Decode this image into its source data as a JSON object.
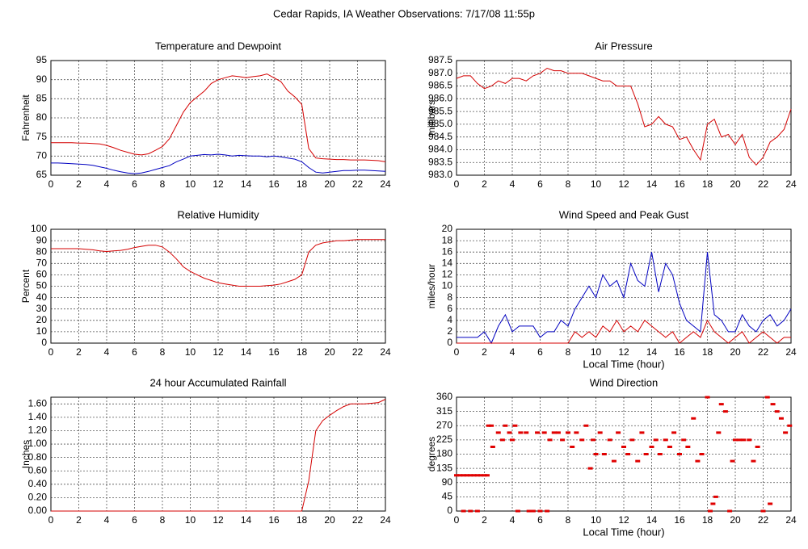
{
  "title": "Cedar Rapids, IA Weather Observations: 7/17/08 11:55p",
  "chart_data": [
    {
      "type": "line",
      "title": "Temperature and Dewpoint",
      "ylabel": "Fahrenheit",
      "xlim": [
        0,
        24
      ],
      "xticks": [
        0,
        2,
        4,
        6,
        8,
        10,
        12,
        14,
        16,
        18,
        20,
        22,
        24
      ],
      "ylim": [
        65,
        95
      ],
      "yticks": [
        65,
        70,
        75,
        80,
        85,
        90,
        95
      ],
      "grid": true,
      "x": [
        0,
        0.5,
        1,
        1.5,
        2,
        2.5,
        3,
        3.5,
        4,
        4.5,
        5,
        5.5,
        6,
        6.5,
        7,
        7.5,
        8,
        8.5,
        9,
        9.5,
        10,
        10.5,
        11,
        11.5,
        12,
        12.5,
        13,
        13.5,
        14,
        14.5,
        15,
        15.5,
        16,
        16.5,
        17,
        17.5,
        18,
        18.5,
        19,
        19.5,
        20,
        20.5,
        21,
        21.5,
        22,
        22.5,
        23,
        23.5,
        24
      ],
      "series": [
        {
          "color": "#d40000",
          "values": [
            73.5,
            73.5,
            73.5,
            73.5,
            73.4,
            73.4,
            73.3,
            73.2,
            72.8,
            72.2,
            71.5,
            71,
            70.5,
            70.3,
            70.6,
            71.5,
            72.5,
            74.5,
            78,
            81.5,
            84,
            85.5,
            87,
            89,
            90,
            90.5,
            91,
            90.8,
            90.5,
            90.8,
            91,
            91.5,
            90.5,
            89.5,
            87,
            85.5,
            83.5,
            72,
            69.5,
            69.3,
            69.2,
            69.1,
            69.1,
            69,
            69,
            69,
            68.9,
            68.8,
            68.5
          ]
        },
        {
          "color": "#0000c0",
          "values": [
            68.2,
            68.2,
            68.1,
            68,
            67.9,
            67.8,
            67.6,
            67.2,
            66.8,
            66.3,
            65.9,
            65.6,
            65.4,
            65.6,
            66,
            66.5,
            67,
            67.5,
            68.5,
            69.2,
            70,
            70.2,
            70.4,
            70.3,
            70.5,
            70.3,
            70,
            70.2,
            70.1,
            70,
            70,
            69.8,
            70,
            69.8,
            69.5,
            69.2,
            68.5,
            67,
            65.8,
            65.6,
            65.8,
            66,
            66.2,
            66.2,
            66.3,
            66.3,
            66.2,
            66.1,
            66
          ]
        }
      ]
    },
    {
      "type": "line",
      "title": "Air Pressure",
      "ylabel": "millibars",
      "xlim": [
        0,
        24
      ],
      "xticks": [
        0,
        2,
        4,
        6,
        8,
        10,
        12,
        14,
        16,
        18,
        20,
        22,
        24
      ],
      "ylim": [
        983,
        987.5
      ],
      "yticks": [
        {
          "value": 983,
          "label": "983.0"
        },
        983.5,
        {
          "value": 984,
          "label": "984.0"
        },
        984.5,
        {
          "value": 985,
          "label": "985.0"
        },
        985.5,
        {
          "value": 986,
          "label": "986.0"
        },
        986.5,
        {
          "value": 987,
          "label": "987.0"
        },
        987.5
      ],
      "grid": true,
      "x": [
        0,
        0.5,
        1,
        1.5,
        2,
        2.5,
        3,
        3.5,
        4,
        4.5,
        5,
        5.5,
        6,
        6.5,
        7,
        7.5,
        8,
        8.5,
        9,
        9.5,
        10,
        10.5,
        11,
        11.5,
        12,
        12.5,
        13,
        13.5,
        14,
        14.5,
        15,
        15.5,
        16,
        16.5,
        17,
        17.5,
        18,
        18.5,
        19,
        19.5,
        20,
        20.5,
        21,
        21.5,
        22,
        22.5,
        23,
        23.5,
        24
      ],
      "series": [
        {
          "color": "#d40000",
          "values": [
            986.8,
            986.9,
            986.9,
            986.6,
            986.4,
            986.5,
            986.7,
            986.6,
            986.8,
            986.8,
            986.7,
            986.9,
            987,
            987.2,
            987.1,
            987.1,
            987,
            987,
            987,
            986.9,
            986.8,
            986.7,
            986.7,
            986.5,
            986.5,
            986.5,
            985.8,
            984.9,
            985,
            985.3,
            985,
            984.9,
            984.4,
            984.5,
            984,
            983.6,
            985,
            985.2,
            984.5,
            984.6,
            984.2,
            984.6,
            983.7,
            983.4,
            983.7,
            984.3,
            984.5,
            984.8,
            985.6
          ]
        }
      ]
    },
    {
      "type": "line",
      "title": "Relative Humidity",
      "ylabel": "Percent",
      "xlim": [
        0,
        24
      ],
      "xticks": [
        0,
        2,
        4,
        6,
        8,
        10,
        12,
        14,
        16,
        18,
        20,
        22,
        24
      ],
      "ylim": [
        0,
        100
      ],
      "yticks": [
        0,
        10,
        20,
        30,
        40,
        50,
        60,
        70,
        80,
        90,
        100
      ],
      "grid": true,
      "x": [
        0,
        0.5,
        1,
        1.5,
        2,
        2.5,
        3,
        3.5,
        4,
        4.5,
        5,
        5.5,
        6,
        6.5,
        7,
        7.5,
        8,
        8.5,
        9,
        9.5,
        10,
        10.5,
        11,
        11.5,
        12,
        12.5,
        13,
        13.5,
        14,
        14.5,
        15,
        15.5,
        16,
        16.5,
        17,
        17.5,
        18,
        18.5,
        19,
        19.5,
        20,
        20.5,
        21,
        21.5,
        22,
        22.5,
        23,
        23.5,
        24
      ],
      "series": [
        {
          "color": "#d40000",
          "values": [
            83,
            83,
            83,
            83,
            83,
            82.5,
            82,
            81,
            80.5,
            81,
            81.5,
            82.5,
            84,
            85,
            86,
            86,
            84.5,
            80,
            74,
            67,
            63,
            60,
            57,
            55,
            53,
            52,
            51,
            50,
            50,
            50,
            50,
            50.5,
            51,
            52,
            54,
            56,
            60,
            80,
            86,
            88,
            89,
            90,
            90,
            90.5,
            91,
            91,
            91,
            91,
            91
          ]
        }
      ]
    },
    {
      "type": "line",
      "title": "Wind Speed and Peak Gust",
      "ylabel": "miles/hour",
      "xlabel": "Local Time (hour)",
      "xlim": [
        0,
        24
      ],
      "xticks": [
        0,
        2,
        4,
        6,
        8,
        10,
        12,
        14,
        16,
        18,
        20,
        22,
        24
      ],
      "ylim": [
        0,
        20
      ],
      "yticks": [
        0,
        2,
        4,
        6,
        8,
        10,
        12,
        14,
        16,
        18,
        20
      ],
      "grid": true,
      "x": [
        0,
        0.5,
        1,
        1.5,
        2,
        2.5,
        3,
        3.5,
        4,
        4.5,
        5,
        5.5,
        6,
        6.5,
        7,
        7.5,
        8,
        8.5,
        9,
        9.5,
        10,
        10.5,
        11,
        11.5,
        12,
        12.5,
        13,
        13.5,
        14,
        14.5,
        15,
        15.5,
        16,
        16.5,
        17,
        17.5,
        18,
        18.5,
        19,
        19.5,
        20,
        20.5,
        21,
        21.5,
        22,
        22.5,
        23,
        23.5,
        24
      ],
      "series": [
        {
          "color": "#0000c0",
          "values": [
            1,
            1,
            1,
            1,
            2,
            0,
            3,
            5,
            2,
            3,
            3,
            3,
            1,
            2,
            2,
            4,
            3,
            6,
            8,
            10,
            8,
            12,
            10,
            11,
            8,
            14,
            11,
            10,
            16,
            9,
            14,
            12,
            7,
            4,
            3,
            2,
            16,
            5,
            4,
            2,
            2,
            5,
            3,
            2,
            4,
            5,
            3,
            4,
            6
          ]
        },
        {
          "color": "#d40000",
          "values": [
            0,
            0,
            0,
            0,
            0,
            0,
            0,
            0,
            0,
            0,
            0,
            0,
            0,
            0,
            0,
            0,
            0,
            2,
            1,
            2,
            1,
            3,
            2,
            4,
            2,
            3,
            2,
            4,
            3,
            2,
            1,
            2,
            0,
            1,
            2,
            1,
            4,
            2,
            1,
            0,
            1,
            2,
            0,
            1,
            2,
            1,
            0,
            1,
            1
          ]
        }
      ]
    },
    {
      "type": "line",
      "title": "24 hour Accumulated Rainfall",
      "ylabel": "Inches",
      "xlim": [
        0,
        24
      ],
      "xticks": [
        0,
        2,
        4,
        6,
        8,
        10,
        12,
        14,
        16,
        18,
        20,
        22,
        24
      ],
      "ylim": [
        0,
        1.7
      ],
      "yticks": [
        {
          "value": 0,
          "label": "0.00"
        },
        {
          "value": 0.2,
          "label": "0.20"
        },
        {
          "value": 0.4,
          "label": "0.40"
        },
        {
          "value": 0.6,
          "label": "0.60"
        },
        {
          "value": 0.8,
          "label": "0.80"
        },
        {
          "value": 1,
          "label": "1.00"
        },
        {
          "value": 1.2,
          "label": "1.20"
        },
        {
          "value": 1.4,
          "label": "1.40"
        },
        {
          "value": 1.6,
          "label": "1.60"
        }
      ],
      "grid": true,
      "x": [
        0,
        0.5,
        1,
        1.5,
        2,
        2.5,
        3,
        3.5,
        4,
        4.5,
        5,
        5.5,
        6,
        6.5,
        7,
        7.5,
        8,
        8.5,
        9,
        9.5,
        10,
        10.5,
        11,
        11.5,
        12,
        12.5,
        13,
        13.5,
        14,
        14.5,
        15,
        15.5,
        16,
        16.5,
        17,
        17.5,
        18,
        18.5,
        19,
        19.5,
        20,
        20.5,
        21,
        21.5,
        22,
        22.5,
        23,
        23.5,
        24
      ],
      "series": [
        {
          "color": "#d40000",
          "values": [
            0,
            0,
            0,
            0,
            0,
            0,
            0,
            0,
            0,
            0,
            0,
            0,
            0,
            0,
            0,
            0,
            0,
            0,
            0,
            0,
            0,
            0,
            0,
            0,
            0,
            0,
            0,
            0,
            0,
            0,
            0,
            0,
            0,
            0,
            0,
            0,
            0,
            0.45,
            1.2,
            1.35,
            1.43,
            1.5,
            1.56,
            1.6,
            1.6,
            1.6,
            1.61,
            1.62,
            1.67
          ]
        }
      ]
    },
    {
      "type": "scatter",
      "title": "Wind Direction",
      "ylabel": "degrees",
      "xlabel": "Local Time (hour)",
      "xlim": [
        0,
        24
      ],
      "xticks": [
        0,
        2,
        4,
        6,
        8,
        10,
        12,
        14,
        16,
        18,
        20,
        22,
        24
      ],
      "ylim": [
        0,
        360
      ],
      "yticks": [
        0,
        45,
        90,
        135,
        180,
        225,
        270,
        315,
        360
      ],
      "grid": true,
      "x": [
        0,
        0.25,
        0.5,
        0.75,
        1,
        1.25,
        1.5,
        1.75,
        2,
        2.2,
        0.5,
        1,
        1.5,
        2.3,
        2.5,
        2.6,
        3,
        3.3,
        3.5,
        3.8,
        4,
        4.2,
        4.4,
        4.6,
        5,
        5.2,
        5.5,
        5.8,
        6,
        6.3,
        6.5,
        6.7,
        7,
        7.3,
        7.6,
        8,
        8.3,
        8.6,
        9,
        9.3,
        9.6,
        9.8,
        10,
        10.3,
        10.6,
        11,
        11.3,
        11.6,
        12,
        12.3,
        12.6,
        13,
        13.3,
        13.6,
        14,
        14.3,
        14.6,
        15,
        15.3,
        15.6,
        16,
        16.3,
        16.6,
        17,
        17.3,
        17.6,
        18,
        18.2,
        18.4,
        18.6,
        18.8,
        19,
        19.3,
        19.6,
        19.8,
        20,
        20.3,
        20.6,
        21,
        21.3,
        21.6,
        22,
        22.3,
        22.5,
        22.7,
        23,
        23.3,
        23.6,
        23.9
      ],
      "series": [
        {
          "color": "#e00000",
          "values": [
            113,
            113,
            113,
            113,
            113,
            113,
            113,
            113,
            113,
            113,
            0,
            0,
            0,
            270,
            270,
            203,
            248,
            225,
            270,
            248,
            225,
            270,
            0,
            248,
            248,
            0,
            0,
            248,
            0,
            248,
            0,
            225,
            248,
            248,
            225,
            248,
            203,
            248,
            225,
            270,
            135,
            225,
            180,
            248,
            180,
            225,
            158,
            248,
            203,
            180,
            225,
            158,
            248,
            180,
            203,
            225,
            180,
            225,
            203,
            248,
            180,
            225,
            203,
            293,
            158,
            180,
            360,
            0,
            23,
            45,
            248,
            338,
            315,
            0,
            158,
            225,
            225,
            225,
            225,
            158,
            203,
            0,
            360,
            23,
            338,
            315,
            293,
            248,
            270
          ]
        }
      ]
    }
  ]
}
